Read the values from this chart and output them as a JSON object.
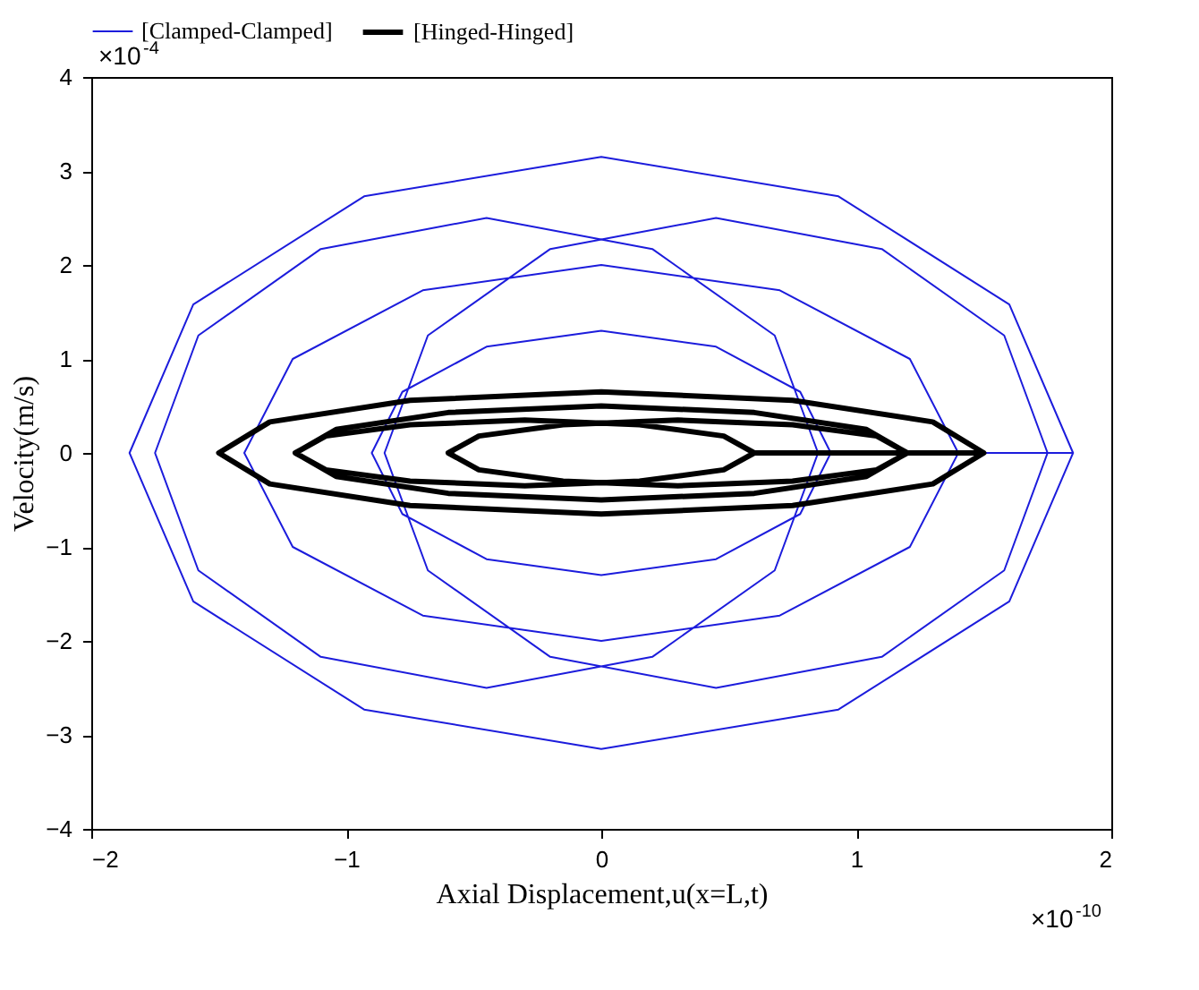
{
  "chart_data": {
    "type": "line",
    "xlabel": "Axial Displacement,u(x=L,t)",
    "ylabel": "Velocity(m/s)",
    "xlim": [
      -2,
      2
    ],
    "xticks": [
      -2,
      -1,
      0,
      1,
      2
    ],
    "ylim": [
      -4,
      4
    ],
    "yticks": [
      -4,
      -3,
      -2,
      -1,
      0,
      1,
      2,
      3,
      4
    ],
    "grid": false,
    "legend": "top",
    "marker": "none",
    "line_style": "solid",
    "annotations": [
      "×10$^{-4}$",
      "×10$^{-10}$"
    ],
    "series": [
      {
        "name": "[Clamped-Clamped]",
        "color": "#1c1cdc",
        "x": [
          1.85,
          1.6,
          0.93,
          0,
          -0.93,
          -1.6,
          -1.85,
          -1.6,
          -0.93,
          0,
          0.93,
          1.6,
          1.85,
          1.75,
          1.58,
          1.1,
          0.45,
          -0.2,
          -0.68,
          -0.85,
          -0.68,
          -0.2,
          0.45,
          1.1,
          1.58,
          1.75,
          0.85,
          0.68,
          0.2,
          -0.45,
          -1.1,
          -1.58,
          -1.75,
          -1.58,
          -1.1,
          -0.45,
          0.2,
          0.68,
          0.85,
          1.4,
          1.21,
          0.7,
          0,
          -0.7,
          -1.21,
          -1.4,
          -1.21,
          -0.7,
          0,
          0.7,
          1.21,
          1.4,
          0.9,
          0.78,
          0.45,
          0,
          -0.45,
          -0.78,
          -0.9,
          -0.78,
          -0.45,
          0,
          0.45,
          0.78,
          0.9
        ],
        "values": [
          0,
          1.58,
          2.73,
          3.15,
          2.73,
          1.58,
          0,
          -1.58,
          -2.73,
          -3.15,
          -2.73,
          -1.58,
          0,
          0,
          1.25,
          2.17,
          2.5,
          2.17,
          1.25,
          0,
          -1.25,
          -2.17,
          -2.5,
          -2.17,
          -1.25,
          0,
          0,
          1.25,
          2.17,
          2.5,
          2.17,
          1.25,
          0,
          -1.25,
          -2.17,
          -2.5,
          -2.17,
          -1.25,
          0,
          0,
          1,
          1.73,
          2,
          1.73,
          1,
          0,
          -1,
          -1.73,
          -2,
          -1.73,
          -1,
          0,
          0,
          0.65,
          1.13,
          1.3,
          1.13,
          0.65,
          0,
          -0.65,
          -1.13,
          -1.3,
          -1.13,
          -0.65,
          0
        ]
      },
      {
        "name": "[Hinged-Hinged]",
        "color": "#000000",
        "x": [
          1.5,
          1.3,
          0.75,
          0,
          -0.75,
          -1.3,
          -1.5,
          -1.3,
          -0.75,
          0,
          0.75,
          1.3,
          1.5,
          1.2,
          1.04,
          0.6,
          0,
          -0.6,
          -1.04,
          -1.2,
          -1.04,
          -0.6,
          0,
          0.6,
          1.04,
          1.2,
          1.2,
          1.08,
          0.75,
          0.3,
          -0.15,
          -0.48,
          -0.6,
          -0.48,
          -0.15,
          0.3,
          0.75,
          1.08,
          1.2,
          0.6,
          0.48,
          0.15,
          -0.3,
          -0.75,
          -1.08,
          -1.2,
          -1.08,
          -0.75,
          -0.3,
          0.15,
          0.48,
          0.6
        ],
        "values": [
          0,
          0.33,
          0.56,
          0.65,
          0.56,
          0.33,
          0,
          -0.33,
          -0.56,
          -0.65,
          -0.56,
          -0.33,
          0,
          0,
          0.25,
          0.43,
          0.5,
          0.43,
          0.25,
          0,
          -0.25,
          -0.43,
          -0.5,
          -0.43,
          -0.25,
          0,
          0,
          0.18,
          0.3,
          0.35,
          0.3,
          0.18,
          0,
          -0.18,
          -0.3,
          -0.35,
          -0.3,
          -0.18,
          0,
          0,
          0.18,
          0.3,
          0.35,
          0.3,
          0.18,
          0,
          -0.18,
          -0.3,
          -0.35,
          -0.3,
          -0.18,
          0
        ]
      }
    ]
  }
}
